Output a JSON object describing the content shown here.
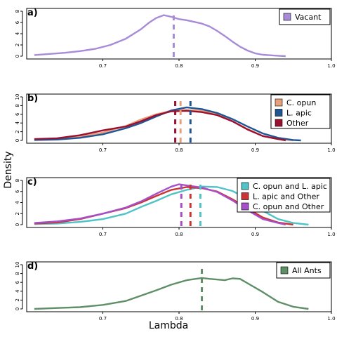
{
  "figure": {
    "ylabel": "Density",
    "xlabel": "Lambda"
  },
  "chart_data": [
    {
      "type": "line",
      "panel_label": "a)",
      "xlim": [
        0.6,
        1.0
      ],
      "ylim": [
        0,
        8
      ],
      "x_ticks": [
        "0.7",
        "0.8",
        "0.9",
        "1.0"
      ],
      "y_ticks": [
        "0",
        "2",
        "4",
        "6",
        "8"
      ],
      "legend_position": "top-right",
      "series": [
        {
          "name": "Vacant",
          "color": "#a78bd8",
          "mean": 0.793,
          "points": [
            [
              0.61,
              0.2
            ],
            [
              0.63,
              0.4
            ],
            [
              0.65,
              0.6
            ],
            [
              0.67,
              0.9
            ],
            [
              0.69,
              1.3
            ],
            [
              0.71,
              2.0
            ],
            [
              0.73,
              3.1
            ],
            [
              0.75,
              4.8
            ],
            [
              0.76,
              5.9
            ],
            [
              0.77,
              6.8
            ],
            [
              0.78,
              7.3
            ],
            [
              0.79,
              7.0
            ],
            [
              0.8,
              6.6
            ],
            [
              0.81,
              6.4
            ],
            [
              0.82,
              6.1
            ],
            [
              0.83,
              5.8
            ],
            [
              0.84,
              5.3
            ],
            [
              0.85,
              4.5
            ],
            [
              0.86,
              3.6
            ],
            [
              0.87,
              2.6
            ],
            [
              0.88,
              1.7
            ],
            [
              0.89,
              1.0
            ],
            [
              0.9,
              0.5
            ],
            [
              0.91,
              0.25
            ],
            [
              0.93,
              0.08
            ],
            [
              0.94,
              0.0
            ]
          ]
        }
      ]
    },
    {
      "type": "line",
      "panel_label": "b)",
      "xlim": [
        0.6,
        1.0
      ],
      "ylim": [
        0,
        10
      ],
      "x_ticks": [
        "0.7",
        "0.8",
        "0.9",
        "1.0"
      ],
      "y_ticks": [
        "0",
        "2",
        "4",
        "6",
        "8",
        "10"
      ],
      "legend_position": "top-right",
      "series": [
        {
          "name": "C. opun",
          "color": "#e8a07a",
          "mean": 0.802,
          "points": [
            [
              0.61,
              0.2
            ],
            [
              0.64,
              0.4
            ],
            [
              0.67,
              0.9
            ],
            [
              0.7,
              1.8
            ],
            [
              0.73,
              3.3
            ],
            [
              0.75,
              4.8
            ],
            [
              0.77,
              6.0
            ],
            [
              0.79,
              6.8
            ],
            [
              0.81,
              7.0
            ],
            [
              0.83,
              6.8
            ],
            [
              0.85,
              6.0
            ],
            [
              0.87,
              4.4
            ],
            [
              0.89,
              2.6
            ],
            [
              0.91,
              1.0
            ],
            [
              0.93,
              0.3
            ],
            [
              0.95,
              0.0
            ]
          ]
        },
        {
          "name": "L. apic",
          "color": "#1f5594",
          "mean": 0.815,
          "points": [
            [
              0.61,
              0.1
            ],
            [
              0.64,
              0.2
            ],
            [
              0.67,
              0.6
            ],
            [
              0.7,
              1.4
            ],
            [
              0.73,
              2.8
            ],
            [
              0.75,
              4.0
            ],
            [
              0.77,
              5.5
            ],
            [
              0.79,
              6.9
            ],
            [
              0.81,
              7.6
            ],
            [
              0.83,
              7.2
            ],
            [
              0.85,
              6.3
            ],
            [
              0.87,
              4.9
            ],
            [
              0.89,
              3.2
            ],
            [
              0.91,
              1.6
            ],
            [
              0.93,
              0.6
            ],
            [
              0.95,
              0.1
            ],
            [
              0.96,
              0.0
            ]
          ]
        },
        {
          "name": "Other",
          "color": "#9b1030",
          "mean": 0.795,
          "points": [
            [
              0.61,
              0.3
            ],
            [
              0.64,
              0.5
            ],
            [
              0.67,
              1.2
            ],
            [
              0.7,
              2.3
            ],
            [
              0.73,
              3.2
            ],
            [
              0.75,
              4.4
            ],
            [
              0.77,
              5.8
            ],
            [
              0.79,
              6.7
            ],
            [
              0.81,
              6.8
            ],
            [
              0.83,
              6.5
            ],
            [
              0.85,
              5.8
            ],
            [
              0.87,
              4.4
            ],
            [
              0.89,
              2.5
            ],
            [
              0.91,
              1.0
            ],
            [
              0.93,
              0.3
            ],
            [
              0.94,
              0.0
            ]
          ]
        }
      ]
    },
    {
      "type": "line",
      "panel_label": "c)",
      "xlim": [
        0.6,
        1.0
      ],
      "ylim": [
        0,
        8
      ],
      "x_ticks": [
        "0.7",
        "0.8",
        "0.9",
        "1.0"
      ],
      "y_ticks": [
        "0",
        "2",
        "4",
        "6",
        "8"
      ],
      "legend_position": "top-right",
      "series": [
        {
          "name": "C. opun and L. apic",
          "color": "#4fc3c8",
          "mean": 0.828,
          "points": [
            [
              0.61,
              0.1
            ],
            [
              0.64,
              0.2
            ],
            [
              0.67,
              0.5
            ],
            [
              0.7,
              1.0
            ],
            [
              0.73,
              2.0
            ],
            [
              0.75,
              3.2
            ],
            [
              0.77,
              4.3
            ],
            [
              0.79,
              5.5
            ],
            [
              0.81,
              6.3
            ],
            [
              0.83,
              6.9
            ],
            [
              0.85,
              6.8
            ],
            [
              0.87,
              6.1
            ],
            [
              0.89,
              4.7
            ],
            [
              0.91,
              2.5
            ],
            [
              0.93,
              1.0
            ],
            [
              0.95,
              0.3
            ],
            [
              0.97,
              0.0
            ]
          ]
        },
        {
          "name": "L. apic and Other",
          "color": "#cc3333",
          "mean": 0.815,
          "points": [
            [
              0.61,
              0.2
            ],
            [
              0.64,
              0.4
            ],
            [
              0.67,
              1.0
            ],
            [
              0.7,
              2.0
            ],
            [
              0.73,
              3.0
            ],
            [
              0.75,
              4.0
            ],
            [
              0.77,
              5.2
            ],
            [
              0.79,
              6.3
            ],
            [
              0.81,
              6.8
            ],
            [
              0.83,
              6.6
            ],
            [
              0.85,
              6.0
            ],
            [
              0.87,
              4.6
            ],
            [
              0.89,
              2.9
            ],
            [
              0.91,
              1.3
            ],
            [
              0.93,
              0.4
            ],
            [
              0.95,
              0.0
            ]
          ]
        },
        {
          "name": "C. opun and Other",
          "color": "#a64fc9",
          "mean": 0.803,
          "points": [
            [
              0.61,
              0.3
            ],
            [
              0.64,
              0.6
            ],
            [
              0.67,
              1.1
            ],
            [
              0.7,
              2.0
            ],
            [
              0.73,
              3.1
            ],
            [
              0.75,
              4.2
            ],
            [
              0.77,
              5.6
            ],
            [
              0.79,
              6.9
            ],
            [
              0.8,
              7.3
            ],
            [
              0.81,
              7.1
            ],
            [
              0.83,
              6.7
            ],
            [
              0.85,
              5.9
            ],
            [
              0.87,
              4.4
            ],
            [
              0.89,
              2.6
            ],
            [
              0.91,
              1.0
            ],
            [
              0.93,
              0.3
            ],
            [
              0.94,
              0.0
            ]
          ]
        }
      ]
    },
    {
      "type": "line",
      "panel_label": "d)",
      "xlim": [
        0.6,
        1.0
      ],
      "ylim": [
        0,
        10
      ],
      "x_ticks": [
        "0.7",
        "0.8",
        "0.9",
        "1.0"
      ],
      "y_ticks": [
        "0",
        "2",
        "4",
        "6",
        "8",
        "10"
      ],
      "legend_position": "top-right",
      "series": [
        {
          "name": "All Ants",
          "color": "#5f8f67",
          "mean": 0.83,
          "points": [
            [
              0.61,
              0.0
            ],
            [
              0.64,
              0.2
            ],
            [
              0.67,
              0.4
            ],
            [
              0.7,
              0.9
            ],
            [
              0.73,
              1.8
            ],
            [
              0.75,
              3.0
            ],
            [
              0.77,
              4.2
            ],
            [
              0.79,
              5.5
            ],
            [
              0.81,
              6.5
            ],
            [
              0.83,
              7.0
            ],
            [
              0.84,
              6.8
            ],
            [
              0.86,
              6.5
            ],
            [
              0.87,
              6.9
            ],
            [
              0.88,
              6.8
            ],
            [
              0.89,
              5.8
            ],
            [
              0.91,
              3.8
            ],
            [
              0.93,
              1.6
            ],
            [
              0.95,
              0.5
            ],
            [
              0.97,
              0.0
            ]
          ]
        }
      ]
    }
  ]
}
